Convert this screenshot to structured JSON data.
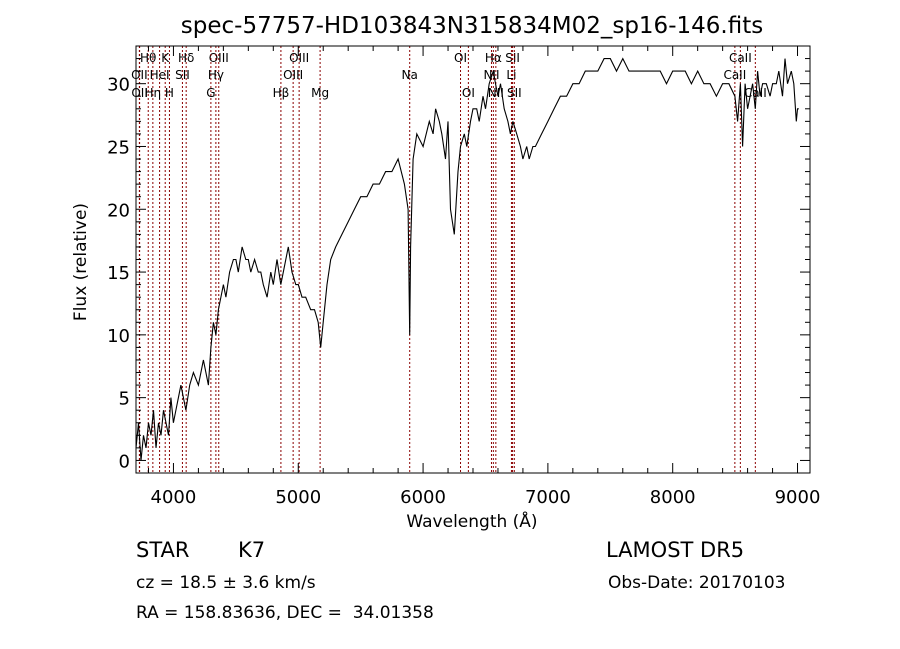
{
  "chart_data": {
    "type": "line",
    "title": "spec-57757-HD103843N315834M02_sp16-146.fits",
    "xlabel": "Wavelength (Å)",
    "ylabel": "Flux (relative)",
    "xlim": [
      3700,
      9100
    ],
    "ylim": [
      -1,
      33
    ],
    "x_ticks": [
      4000,
      5000,
      6000,
      7000,
      8000,
      9000
    ],
    "y_ticks": [
      0,
      5,
      10,
      15,
      20,
      25,
      30
    ],
    "grid": false,
    "series": [
      {
        "x": [
          3700,
          3720,
          3740,
          3760,
          3780,
          3800,
          3820,
          3840,
          3860,
          3880,
          3900,
          3920,
          3940,
          3960,
          3980,
          4000,
          4020,
          4040,
          4060,
          4080,
          4100,
          4130,
          4160,
          4200,
          4240,
          4280,
          4300,
          4320,
          4340,
          4360,
          4380,
          4400,
          4420,
          4450,
          4480,
          4500,
          4520,
          4550,
          4580,
          4600,
          4620,
          4650,
          4680,
          4700,
          4720,
          4750,
          4780,
          4800,
          4830,
          4860,
          4880,
          4900,
          4920,
          4950,
          4980,
          5000,
          5030,
          5060,
          5100,
          5130,
          5160,
          5180,
          5200,
          5230,
          5260,
          5300,
          5350,
          5400,
          5450,
          5500,
          5550,
          5600,
          5650,
          5700,
          5750,
          5800,
          5850,
          5880,
          5893,
          5900,
          5920,
          5950,
          6000,
          6050,
          6080,
          6100,
          6130,
          6150,
          6180,
          6200,
          6220,
          6250,
          6280,
          6300,
          6330,
          6350,
          6380,
          6400,
          6430,
          6450,
          6480,
          6500,
          6530,
          6563,
          6580,
          6600,
          6620,
          6650,
          6680,
          6700,
          6720,
          6750,
          6780,
          6800,
          6830,
          6850,
          6880,
          6900,
          6950,
          7000,
          7050,
          7100,
          7150,
          7200,
          7250,
          7300,
          7350,
          7400,
          7450,
          7500,
          7550,
          7600,
          7650,
          7700,
          7750,
          7800,
          7850,
          7900,
          7950,
          8000,
          8050,
          8100,
          8150,
          8200,
          8250,
          8300,
          8350,
          8400,
          8450,
          8498,
          8520,
          8542,
          8560,
          8580,
          8600,
          8620,
          8640,
          8662,
          8680,
          8700,
          8720,
          8750,
          8780,
          8800,
          8830,
          8850,
          8880,
          8900,
          8920,
          8950,
          8970,
          8990,
          9000,
          9010
        ],
        "y": [
          1,
          3,
          0,
          2,
          1,
          3,
          2,
          4,
          1,
          3,
          2,
          4,
          3,
          2,
          5,
          3,
          4,
          5,
          6,
          5,
          4,
          6,
          7,
          6,
          8,
          6,
          9,
          11,
          10,
          12,
          13,
          14,
          13,
          15,
          16,
          16,
          15,
          17,
          16,
          16,
          15,
          16,
          15,
          15,
          14,
          13,
          15,
          14,
          16,
          14,
          15,
          16,
          17,
          15,
          14,
          14,
          13,
          13,
          12,
          12,
          11,
          9,
          11,
          14,
          16,
          17,
          18,
          19,
          20,
          21,
          21,
          22,
          22,
          23,
          23,
          24,
          22,
          20,
          10,
          17,
          24,
          26,
          25,
          27,
          26,
          28,
          27,
          26,
          24,
          27,
          20,
          18,
          23,
          25,
          26,
          25,
          27,
          28,
          28,
          27,
          29,
          28,
          30,
          31,
          30,
          29,
          30,
          28,
          27,
          26,
          27,
          26,
          25,
          24,
          25,
          24,
          25,
          25,
          26,
          27,
          28,
          29,
          29,
          30,
          30,
          31,
          31,
          31,
          32,
          32,
          31,
          32,
          31,
          31,
          31,
          31,
          31,
          31,
          30,
          31,
          31,
          31,
          30,
          31,
          30,
          30,
          29,
          30,
          30,
          29,
          27,
          30,
          25,
          30,
          28,
          29,
          30,
          28,
          31,
          29,
          30,
          30,
          29,
          30,
          30,
          31,
          29,
          32,
          30,
          31,
          30,
          27,
          28,
          28
        ]
      }
    ],
    "lines": [
      {
        "name": "Hθ",
        "x": 3798,
        "row": 1
      },
      {
        "name": "K",
        "x": 3934,
        "row": 1
      },
      {
        "name": "Hδ",
        "x": 4102,
        "row": 1
      },
      {
        "name": "OIII",
        "x": 4363,
        "row": 1
      },
      {
        "name": "OIII",
        "x": 5007,
        "row": 1
      },
      {
        "name": "OI",
        "x": 6300,
        "row": 1
      },
      {
        "name": "Hα",
        "x": 6563,
        "row": 1
      },
      {
        "name": "SII",
        "x": 6717,
        "row": 1
      },
      {
        "name": "CaII",
        "x": 8542,
        "row": 1
      },
      {
        "name": "OII",
        "x": 3727,
        "row": 2
      },
      {
        "name": "HeI",
        "x": 3889,
        "row": 2
      },
      {
        "name": "SII",
        "x": 4072,
        "row": 2
      },
      {
        "name": "Hγ",
        "x": 4340,
        "row": 2
      },
      {
        "name": "OIII",
        "x": 4959,
        "row": 2
      },
      {
        "name": "Na",
        "x": 5893,
        "row": 2
      },
      {
        "name": "NII",
        "x": 6548,
        "row": 2
      },
      {
        "name": "Li",
        "x": 6708,
        "row": 2
      },
      {
        "name": "CaII",
        "x": 8498,
        "row": 2
      },
      {
        "name": "OII",
        "x": 3729,
        "row": 3
      },
      {
        "name": "Hη",
        "x": 3835,
        "row": 3
      },
      {
        "name": "H",
        "x": 3968,
        "row": 3
      },
      {
        "name": "G",
        "x": 4300,
        "row": 3
      },
      {
        "name": "Hβ",
        "x": 4861,
        "row": 3
      },
      {
        "name": "Mg",
        "x": 5175,
        "row": 3
      },
      {
        "name": "OI",
        "x": 6363,
        "row": 3
      },
      {
        "name": "NII",
        "x": 6583,
        "row": 3
      },
      {
        "name": "SII",
        "x": 6731,
        "row": 3
      },
      {
        "name": "CaII",
        "x": 8662,
        "row": 3
      }
    ]
  },
  "info": {
    "obj_class": "STAR",
    "subclass": "K7",
    "survey": "LAMOST DR5",
    "cz": "cz = 18.5 ± 3.6 km/s",
    "obs_date": "Obs-Date: 20170103",
    "coords": "RA = 158.83636, DEC =  34.01358"
  },
  "colors": {
    "spectrum": "#000000",
    "line_markers": "#8b0000",
    "axes": "#000000"
  }
}
